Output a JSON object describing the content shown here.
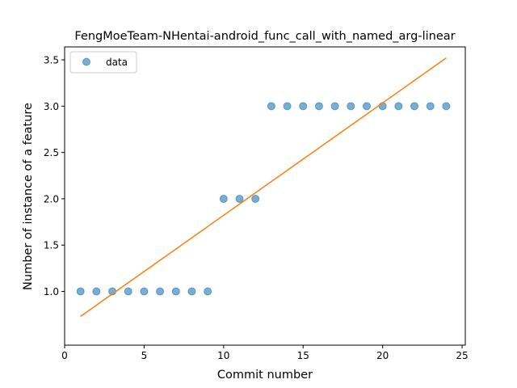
{
  "chart_data": {
    "type": "scatter",
    "title": "FengMoeTeam-NHentai-android_func_call_with_named_arg-linear",
    "xlabel": "Commit number",
    "ylabel": "Number of instance of a feature",
    "xlim": [
      0,
      25.2
    ],
    "ylim": [
      0.42,
      3.64
    ],
    "xticks": [
      0,
      5,
      10,
      15,
      20,
      25
    ],
    "yticks": [
      1.0,
      1.5,
      2.0,
      2.5,
      3.0,
      3.5
    ],
    "xtick_labels": [
      "0",
      "5",
      "10",
      "15",
      "20",
      "25"
    ],
    "ytick_labels": [
      "1.0",
      "1.5",
      "2.0",
      "2.5",
      "3.0",
      "3.5"
    ],
    "grid": false,
    "legend": {
      "position": "top-left",
      "entries": [
        "data"
      ]
    },
    "series": [
      {
        "name": "data",
        "kind": "scatter",
        "color": "#1f77b4",
        "x": [
          1,
          2,
          3,
          4,
          5,
          6,
          7,
          8,
          9,
          10,
          11,
          12,
          13,
          14,
          15,
          16,
          17,
          18,
          19,
          20,
          21,
          22,
          23,
          24
        ],
        "y": [
          1,
          1,
          1,
          1,
          1,
          1,
          1,
          1,
          1,
          2,
          2,
          2,
          3,
          3,
          3,
          3,
          3,
          3,
          3,
          3,
          3,
          3,
          3,
          3
        ]
      },
      {
        "kind": "line",
        "color": "#ff7f0e",
        "x": [
          1,
          24
        ],
        "y": [
          0.73,
          3.52
        ]
      }
    ]
  }
}
